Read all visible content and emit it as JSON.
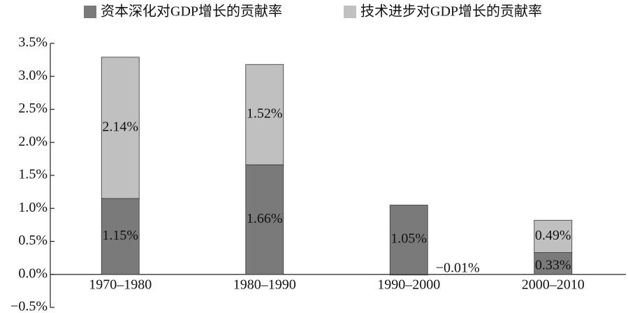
{
  "chart_data": {
    "type": "stacked-bar",
    "categories": [
      "1970–1980",
      "1980–1990",
      "1990–2000",
      "2000–2010"
    ],
    "series": [
      {
        "name": "资本深化对GDP增长的贡献率",
        "color": "#7a7a7a",
        "values": [
          1.15,
          1.66,
          1.05,
          0.33
        ],
        "value_labels": [
          "1.15%",
          "1.66%",
          "1.05%",
          "0.33%"
        ]
      },
      {
        "name": "技术进步对GDP增长的贡献率",
        "color": "#c0c0c0",
        "values": [
          2.14,
          1.52,
          -0.01,
          0.49
        ],
        "value_labels": [
          "2.14%",
          "1.52%",
          "−0.01%",
          "0.49%"
        ]
      }
    ],
    "ylim": [
      -0.5,
      3.5
    ],
    "yticks": [
      {
        "value": -0.5,
        "label": "−0.5%"
      },
      {
        "value": 0,
        "label": "0.0%"
      },
      {
        "value": 0.5,
        "label": "0.5%"
      },
      {
        "value": 1,
        "label": "1.0%"
      },
      {
        "value": 1.5,
        "label": "1.5%"
      },
      {
        "value": 2,
        "label": "2.0%"
      },
      {
        "value": 2.5,
        "label": "2.5%"
      },
      {
        "value": 3,
        "label": "3.0%"
      },
      {
        "value": 3.5,
        "label": "3.5%"
      }
    ],
    "legend": "top"
  }
}
